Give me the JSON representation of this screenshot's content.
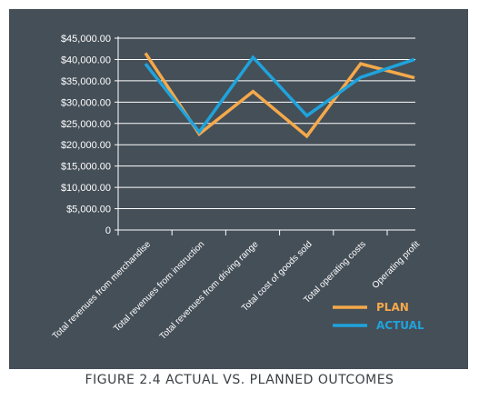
{
  "caption": "FIGURE 2.4 ACTUAL VS. PLANNED OUTCOMES",
  "colors": {
    "background": "#454f58",
    "plan": "#f5a94a",
    "actual": "#1fa3dc",
    "axis": "#ffffff"
  },
  "chart_data": {
    "type": "line",
    "categories": [
      "Total revenues from merchandise",
      "Total revenues from instruction",
      "Total revenues from driving range",
      "Total cost of goods sold",
      "Total operating costs",
      "Operating profit"
    ],
    "y_tick_labels": [
      "0",
      "$5,000.00",
      "$10,000.00",
      "$15,000.00",
      "$20,000.00",
      "$25,000.00",
      "$30,000.00",
      "$35,000.00",
      "$40,000.00",
      "$45,000.00"
    ],
    "y_ticks": [
      0,
      5000,
      10000,
      15000,
      20000,
      25000,
      30000,
      35000,
      40000,
      45000
    ],
    "ylim": [
      0,
      45000
    ],
    "grid": true,
    "legend_position": "bottom-right",
    "series": [
      {
        "name": "PLAN",
        "color": "#f5a94a",
        "values": [
          41500,
          22500,
          32500,
          22000,
          39000,
          35700
        ]
      },
      {
        "name": "ACTUAL",
        "color": "#1fa3dc",
        "values": [
          39000,
          23000,
          40500,
          26800,
          35800,
          40000
        ]
      }
    ]
  }
}
